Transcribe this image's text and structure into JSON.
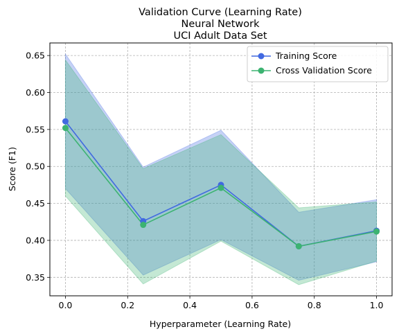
{
  "chart_data": {
    "type": "line",
    "title_lines": [
      "Validation Curve (Learning Rate)",
      "Neural Network",
      "UCI Adult Data Set"
    ],
    "xlabel": "Hyperparameter (Learning Rate)",
    "ylabel": "Score (F1)",
    "xlim": [
      -0.05,
      1.05
    ],
    "ylim": [
      0.325,
      0.667
    ],
    "xticks": [
      0.0,
      0.2,
      0.4,
      0.6,
      0.8,
      1.0
    ],
    "xtick_labels": [
      "0.0",
      "0.2",
      "0.4",
      "0.6",
      "0.8",
      "1.0"
    ],
    "yticks": [
      0.35,
      0.4,
      0.45,
      0.5,
      0.55,
      0.6,
      0.65
    ],
    "ytick_labels": [
      "0.35",
      "0.40",
      "0.45",
      "0.50",
      "0.55",
      "0.60",
      "0.65"
    ],
    "grid": true,
    "legend_position": "top-right",
    "x": [
      0.0,
      0.25,
      0.5,
      0.75,
      1.0
    ],
    "series": [
      {
        "name": "Training Score",
        "color": "#4169e1",
        "fill_color": "#4169e1",
        "values": [
          0.561,
          0.426,
          0.475,
          0.392,
          0.413
        ],
        "upper": [
          0.652,
          0.499,
          0.549,
          0.438,
          0.455
        ],
        "lower": [
          0.47,
          0.353,
          0.401,
          0.346,
          0.371
        ]
      },
      {
        "name": "Cross Validation Score",
        "color": "#3cb371",
        "fill_color": "#3cb371",
        "values": [
          0.552,
          0.421,
          0.471,
          0.392,
          0.412
        ],
        "upper": [
          0.644,
          0.497,
          0.543,
          0.444,
          0.452
        ],
        "lower": [
          0.46,
          0.341,
          0.399,
          0.34,
          0.372
        ]
      }
    ]
  }
}
